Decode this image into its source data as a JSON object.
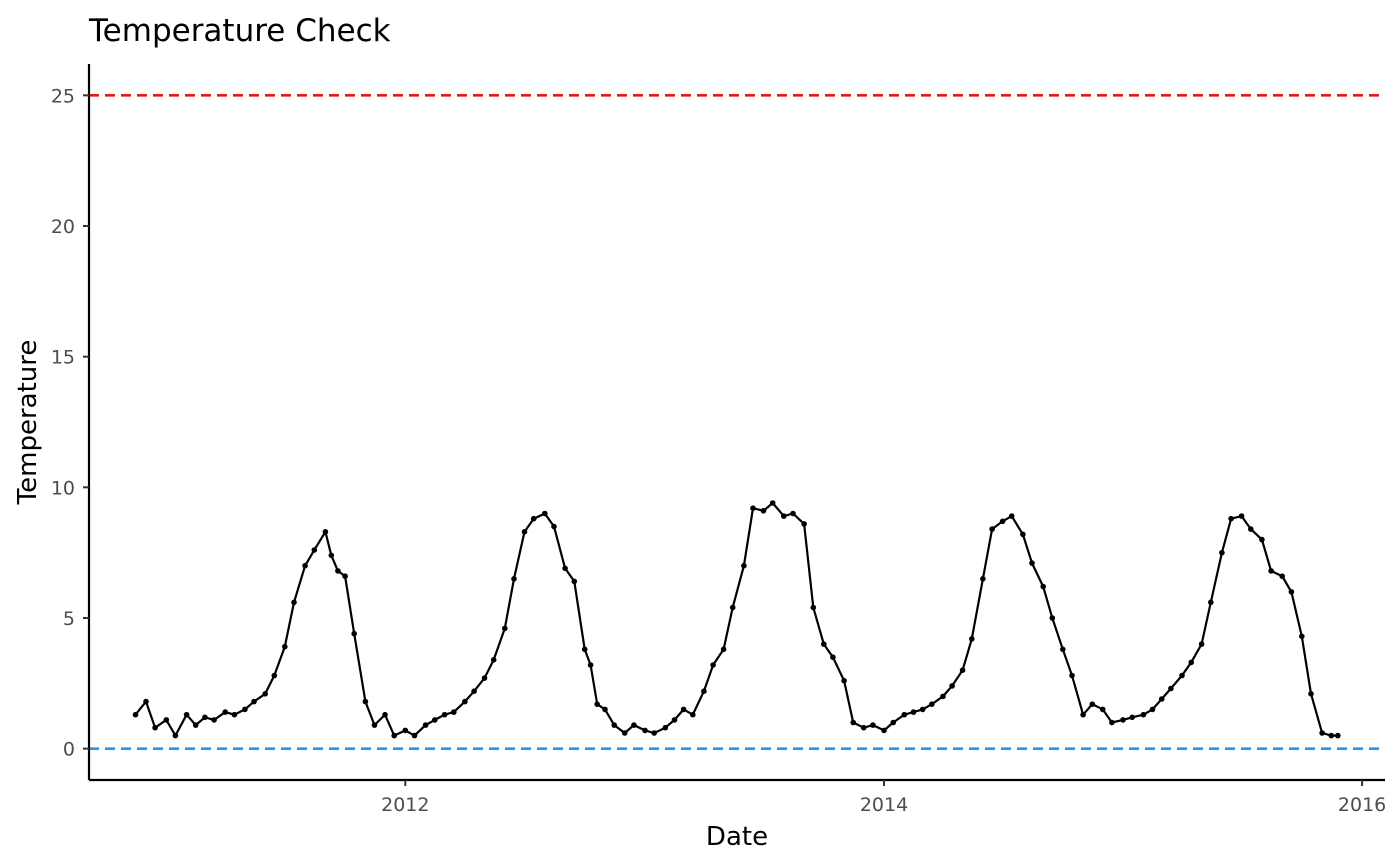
{
  "chart_data": {
    "type": "line",
    "title": "Temperature Check",
    "xlabel": "Date",
    "ylabel": "Temperature",
    "x_ticks": [
      "2012",
      "2014",
      "2016"
    ],
    "y_ticks": [
      "0",
      "5",
      "10",
      "15",
      "20",
      "25"
    ],
    "xlim": [
      "2010-09-05",
      "2016-02-05"
    ],
    "ylim": [
      -1.2,
      26.2
    ],
    "grid": false,
    "legend": "none",
    "reference_lines": [
      {
        "value": 25,
        "color": "#e31a1c",
        "style": "dashed"
      },
      {
        "value": 0,
        "color": "#2196f3",
        "style": "dashed"
      }
    ],
    "series": [
      {
        "color": "#000000",
        "markers": true,
        "x": [
          "2010-11-15",
          "2010-12-01",
          "2010-12-15",
          "2011-01-01",
          "2011-01-15",
          "2011-02-01",
          "2011-02-15",
          "2011-03-01",
          "2011-03-15",
          "2011-04-01",
          "2011-04-15",
          "2011-05-01",
          "2011-05-15",
          "2011-06-01",
          "2011-06-15",
          "2011-07-01",
          "2011-07-15",
          "2011-08-01",
          "2011-08-15",
          "2011-09-01",
          "2011-09-10",
          "2011-09-20",
          "2011-10-01",
          "2011-10-15",
          "2011-11-01",
          "2011-11-15",
          "2011-12-01",
          "2011-12-15",
          "2012-01-01",
          "2012-01-15",
          "2012-02-01",
          "2012-02-15",
          "2012-03-01",
          "2012-03-15",
          "2012-04-01",
          "2012-04-15",
          "2012-05-01",
          "2012-05-15",
          "2012-06-01",
          "2012-06-15",
          "2012-07-01",
          "2012-07-15",
          "2012-08-01",
          "2012-08-15",
          "2012-09-01",
          "2012-09-15",
          "2012-10-01",
          "2012-10-10",
          "2012-10-20",
          "2012-11-01",
          "2012-11-15",
          "2012-12-01",
          "2012-12-15",
          "2013-01-01",
          "2013-01-15",
          "2013-02-01",
          "2013-02-15",
          "2013-03-01",
          "2013-03-15",
          "2013-04-01",
          "2013-04-15",
          "2013-05-01",
          "2013-05-15",
          "2013-06-01",
          "2013-06-15",
          "2013-07-01",
          "2013-07-15",
          "2013-08-01",
          "2013-08-15",
          "2013-09-01",
          "2013-09-15",
          "2013-10-01",
          "2013-10-15",
          "2013-11-01",
          "2013-11-15",
          "2013-12-01",
          "2013-12-15",
          "2014-01-01",
          "2014-01-15",
          "2014-02-01",
          "2014-02-15",
          "2014-03-01",
          "2014-03-15",
          "2014-04-01",
          "2014-04-15",
          "2014-05-01",
          "2014-05-15",
          "2014-06-01",
          "2014-06-15",
          "2014-07-01",
          "2014-07-15",
          "2014-08-01",
          "2014-08-15",
          "2014-09-01",
          "2014-09-15",
          "2014-10-01",
          "2014-10-15",
          "2014-11-01",
          "2014-11-15",
          "2014-12-01",
          "2014-12-15",
          "2015-01-01",
          "2015-01-15",
          "2015-02-01",
          "2015-02-15",
          "2015-03-01",
          "2015-03-15",
          "2015-04-01",
          "2015-04-15",
          "2015-05-01",
          "2015-05-15",
          "2015-06-01",
          "2015-06-15",
          "2015-07-01",
          "2015-07-15",
          "2015-08-01",
          "2015-08-15",
          "2015-09-01",
          "2015-09-15",
          "2015-10-01",
          "2015-10-15",
          "2015-11-01",
          "2015-11-15",
          "2015-11-25"
        ],
        "y": [
          1.3,
          1.8,
          0.8,
          1.1,
          0.5,
          1.3,
          0.9,
          1.2,
          1.1,
          1.4,
          1.3,
          1.5,
          1.8,
          2.1,
          2.8,
          3.9,
          5.6,
          7.0,
          7.6,
          8.3,
          7.4,
          6.8,
          6.6,
          4.4,
          1.8,
          0.9,
          1.3,
          0.5,
          0.7,
          0.5,
          0.9,
          1.1,
          1.3,
          1.4,
          1.8,
          2.2,
          2.7,
          3.4,
          4.6,
          6.5,
          8.3,
          8.8,
          9.0,
          8.5,
          6.9,
          6.4,
          3.8,
          3.2,
          1.7,
          1.5,
          0.9,
          0.6,
          0.9,
          0.7,
          0.6,
          0.8,
          1.1,
          1.5,
          1.3,
          2.2,
          3.2,
          3.8,
          5.4,
          7.0,
          9.2,
          9.1,
          9.4,
          8.9,
          9.0,
          8.6,
          5.4,
          4.0,
          3.5,
          2.6,
          1.0,
          0.8,
          0.9,
          0.7,
          1.0,
          1.3,
          1.4,
          1.5,
          1.7,
          2.0,
          2.4,
          3.0,
          4.2,
          6.5,
          8.4,
          8.7,
          8.9,
          8.2,
          7.1,
          6.2,
          5.0,
          3.8,
          2.8,
          1.3,
          1.7,
          1.5,
          1.0,
          1.1,
          1.2,
          1.3,
          1.5,
          1.9,
          2.3,
          2.8,
          3.3,
          4.0,
          5.6,
          7.5,
          8.8,
          8.9,
          8.4,
          8.0,
          6.8,
          6.6,
          6.0,
          4.3,
          2.1,
          0.6,
          0.5,
          0.5
        ]
      }
    ]
  }
}
